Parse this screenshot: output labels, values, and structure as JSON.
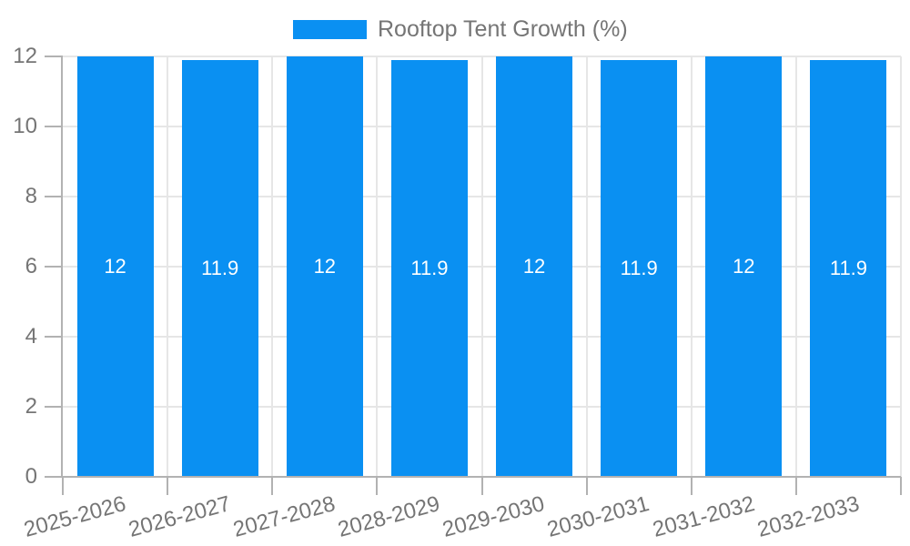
{
  "chart_data": {
    "type": "bar",
    "legend_label": "Rooftop Tent Growth (%)",
    "categories": [
      "2025-2026",
      "2026-2027",
      "2027-2028",
      "2028-2029",
      "2029-2030",
      "2030-2031",
      "2031-2032",
      "2032-2033"
    ],
    "values": [
      12,
      11.9,
      12,
      11.9,
      12,
      11.9,
      12,
      11.9
    ],
    "bar_value_labels": [
      "12",
      "11.9",
      "12",
      "11.9",
      "12",
      "11.9",
      "12",
      "11.9"
    ],
    "title": "",
    "xlabel": "",
    "ylabel": "",
    "ylim": [
      0,
      12
    ],
    "yticks": [
      0,
      2,
      4,
      6,
      8,
      10,
      12
    ],
    "grid": true,
    "legend_position": "top",
    "x_tick_rotation_deg": -15,
    "colors": {
      "bar": "#0a90f2",
      "tick_text": "#757575",
      "grid": "#e6e6e6",
      "axis": "#b2b2b2",
      "value_label": "#ffffff"
    }
  }
}
